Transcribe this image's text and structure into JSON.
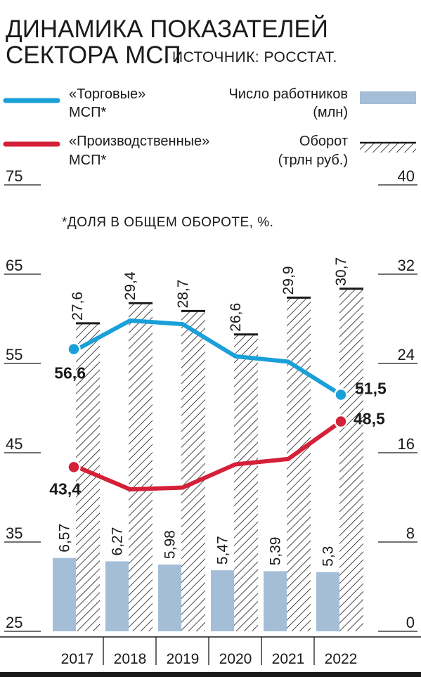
{
  "title_lines": [
    "ДИНАМИКА ПОКАЗАТЕЛЕЙ",
    "СЕКТОРА МСП"
  ],
  "source": "ИСТОЧНИК: РОССТАТ.",
  "note": "*ДОЛЯ В ОБЩЕМ ОБОРОТЕ, %.",
  "legend": {
    "trade": [
      "«Торговые»",
      "МСП*"
    ],
    "production": [
      "«Производственные»",
      "МСП*"
    ],
    "workers": [
      "Число работников",
      "(млн)"
    ],
    "turnover": [
      "Оборот",
      "(трлн руб.)"
    ]
  },
  "colors": {
    "trade": "#1aa0d8",
    "production": "#d42038",
    "workers": "#a4bed8",
    "hatch": "#1a1a1a"
  },
  "chart_data": {
    "type": "bar",
    "categories": [
      "2017",
      "2018",
      "2019",
      "2020",
      "2021",
      "2022"
    ],
    "left_axis": {
      "ticks": [
        "75",
        "65",
        "55",
        "45",
        "35",
        "25"
      ],
      "range": [
        25,
        75
      ]
    },
    "right_axis": {
      "ticks": [
        "40",
        "32",
        "24",
        "16",
        "8",
        "0"
      ],
      "range": [
        0,
        40
      ]
    },
    "series": [
      {
        "name": "Число работников (млн)",
        "type": "bar",
        "axis": "right",
        "values": [
          6.57,
          6.27,
          5.98,
          5.47,
          5.39,
          5.3
        ],
        "labels": [
          "6,57",
          "6,27",
          "5,98",
          "5,47",
          "5,39",
          "5,3"
        ]
      },
      {
        "name": "Оборот (трлн руб.)",
        "type": "bar",
        "axis": "right",
        "values": [
          27.6,
          29.4,
          28.7,
          26.6,
          29.9,
          30.7
        ],
        "labels": [
          "27,6",
          "29,4",
          "28,7",
          "26,6",
          "29,9",
          "30,7"
        ]
      },
      {
        "name": "«Торговые» МСП*",
        "type": "line",
        "axis": "left",
        "values": [
          56.6,
          59.8,
          59.4,
          55.8,
          55.2,
          51.5
        ],
        "end_labels": [
          "56,6",
          "51,5"
        ]
      },
      {
        "name": "«Производственные» МСП*",
        "type": "line",
        "axis": "left",
        "values": [
          43.4,
          40.9,
          41.1,
          43.7,
          44.3,
          48.5
        ],
        "end_labels": [
          "43,4",
          "48,5"
        ]
      }
    ]
  }
}
